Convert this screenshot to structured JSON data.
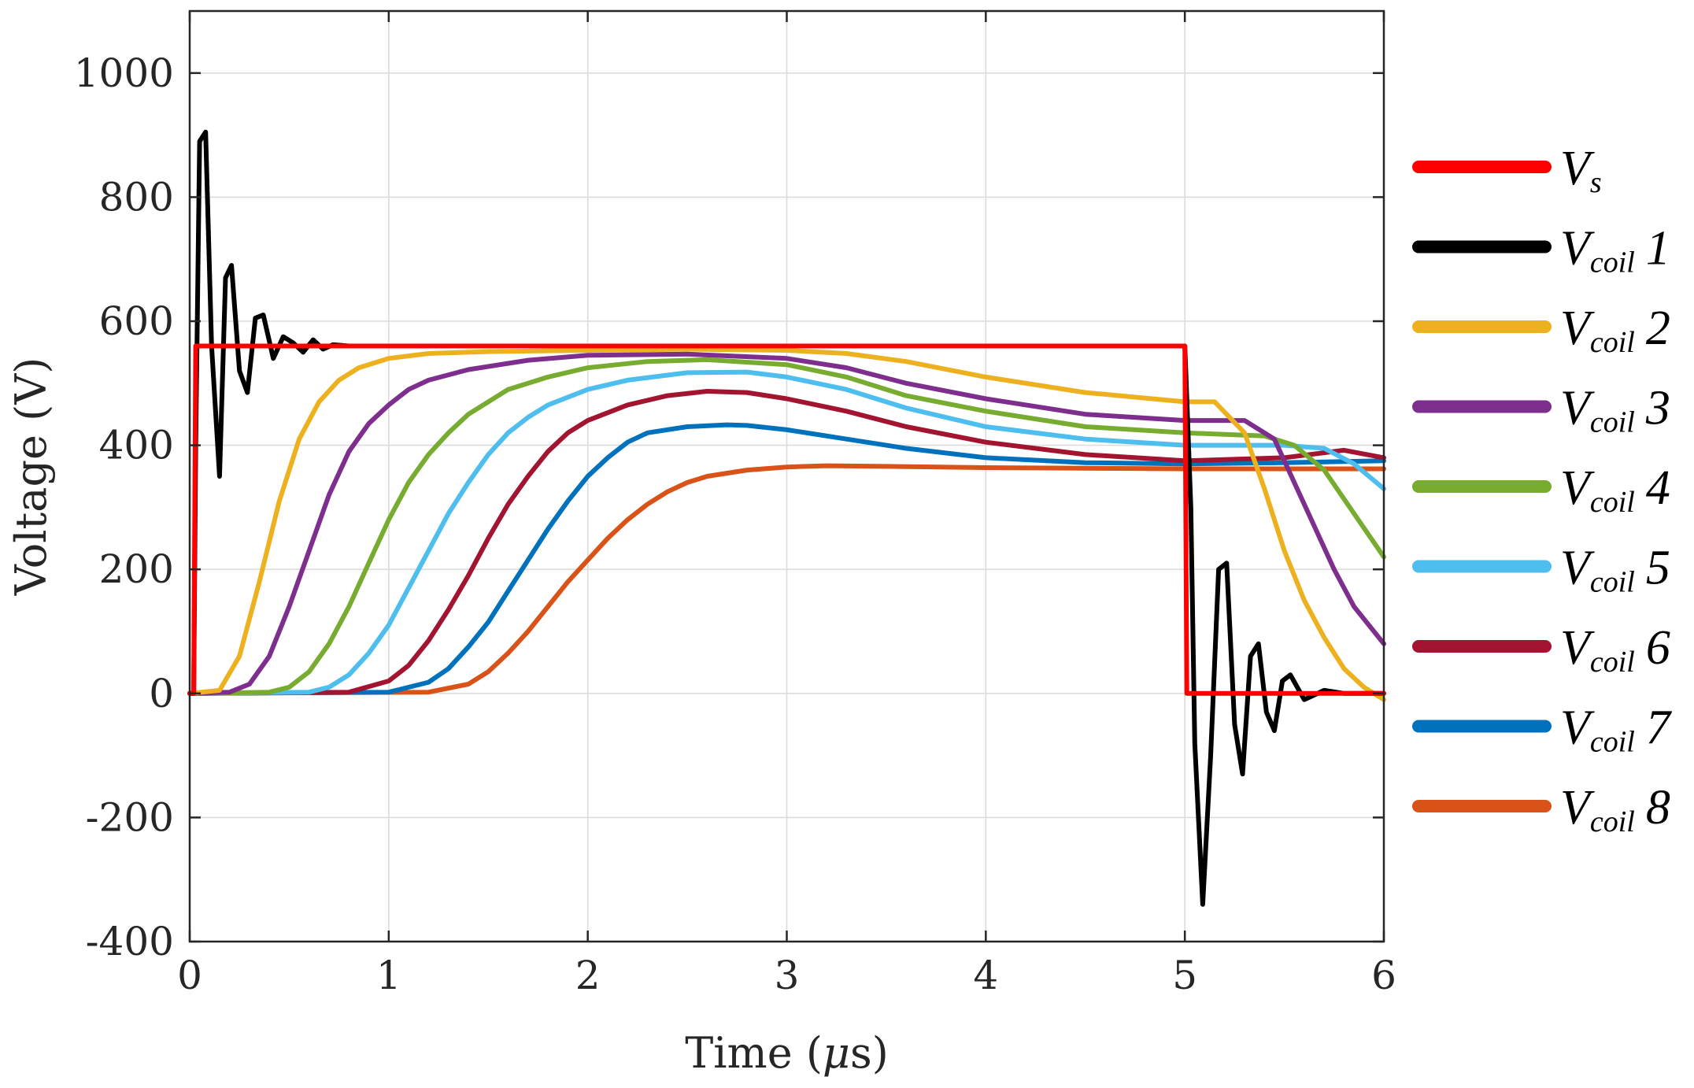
{
  "chart_data": {
    "type": "line",
    "title": "",
    "xlabel_prefix": "Time (",
    "xlabel_symbol": "μ",
    "xlabel_suffix": "s)",
    "ylabel": "Voltage (V)",
    "xlim": [
      0,
      6
    ],
    "ylim": [
      -400,
      1100
    ],
    "xticks": [
      0,
      1,
      2,
      3,
      4,
      5,
      6
    ],
    "xtick_labels": [
      "0",
      "1",
      "2",
      "3",
      "4",
      "5",
      "6"
    ],
    "yticks": [
      -400,
      -200,
      0,
      200,
      400,
      600,
      800,
      1000
    ],
    "ytick_labels": [
      "-400",
      "-200",
      "0",
      "200",
      "400",
      "600",
      "800",
      "1000"
    ],
    "grid": true,
    "legend_position": "outside-right",
    "series": [
      {
        "name": "Vs",
        "label_main": "V",
        "label_sub": "s",
        "label_num": "",
        "color": "#ff0000",
        "x": [
          0,
          0.02,
          0.03,
          5.0,
          5.01,
          6.0
        ],
        "y": [
          0,
          0,
          560,
          560,
          0,
          0
        ]
      },
      {
        "name": "Vcoil 1",
        "label_main": "V",
        "label_sub": "coil",
        "label_num": "1",
        "color": "#000000",
        "x": [
          0,
          0.02,
          0.03,
          0.05,
          0.08,
          0.11,
          0.15,
          0.18,
          0.21,
          0.25,
          0.29,
          0.33,
          0.37,
          0.42,
          0.47,
          0.52,
          0.57,
          0.62,
          0.67,
          0.72,
          0.8,
          1.0,
          5.0,
          5.03,
          5.05,
          5.09,
          5.13,
          5.17,
          5.21,
          5.25,
          5.29,
          5.33,
          5.37,
          5.41,
          5.45,
          5.49,
          5.53,
          5.6,
          5.7,
          5.8,
          6.0
        ],
        "y": [
          0,
          0,
          400,
          890,
          905,
          560,
          350,
          670,
          690,
          520,
          485,
          605,
          610,
          540,
          575,
          565,
          550,
          570,
          555,
          562,
          560,
          560,
          560,
          300,
          -80,
          -340,
          -100,
          200,
          210,
          -50,
          -130,
          60,
          80,
          -30,
          -60,
          20,
          30,
          -10,
          5,
          0,
          0
        ]
      },
      {
        "name": "Vcoil 2",
        "label_main": "V",
        "label_sub": "coil",
        "label_num": "2",
        "color": "#EDB120",
        "x": [
          0,
          0.15,
          0.25,
          0.35,
          0.45,
          0.55,
          0.65,
          0.75,
          0.85,
          1.0,
          1.2,
          1.5,
          2.0,
          2.5,
          3.0,
          3.3,
          3.6,
          4.0,
          4.5,
          5.0,
          5.15,
          5.3,
          5.4,
          5.5,
          5.6,
          5.7,
          5.8,
          5.9,
          6.0
        ],
        "y": [
          0,
          5,
          60,
          180,
          310,
          410,
          470,
          505,
          525,
          540,
          548,
          551,
          553,
          555,
          553,
          548,
          535,
          510,
          485,
          470,
          470,
          420,
          330,
          230,
          150,
          90,
          40,
          10,
          -10
        ]
      },
      {
        "name": "Vcoil 3",
        "label_main": "V",
        "label_sub": "coil",
        "label_num": "3",
        "color": "#7E2F8E",
        "x": [
          0,
          0.2,
          0.3,
          0.4,
          0.5,
          0.6,
          0.7,
          0.8,
          0.9,
          1.0,
          1.1,
          1.2,
          1.4,
          1.7,
          2.0,
          2.5,
          3.0,
          3.3,
          3.6,
          4.0,
          4.5,
          5.0,
          5.3,
          5.45,
          5.55,
          5.65,
          5.75,
          5.85,
          6.0
        ],
        "y": [
          0,
          2,
          15,
          60,
          140,
          230,
          320,
          390,
          435,
          465,
          490,
          505,
          522,
          537,
          545,
          547,
          540,
          525,
          500,
          475,
          450,
          440,
          440,
          410,
          340,
          270,
          200,
          140,
          80
        ]
      },
      {
        "name": "Vcoil 4",
        "label_main": "V",
        "label_sub": "coil",
        "label_num": "4",
        "color": "#77AC30",
        "x": [
          0,
          0.4,
          0.5,
          0.6,
          0.7,
          0.8,
          0.9,
          1.0,
          1.1,
          1.2,
          1.3,
          1.4,
          1.5,
          1.6,
          1.8,
          2.0,
          2.3,
          2.6,
          3.0,
          3.3,
          3.6,
          4.0,
          4.5,
          5.0,
          5.4,
          5.55,
          5.7,
          5.85,
          6.0
        ],
        "y": [
          0,
          2,
          10,
          35,
          80,
          140,
          210,
          280,
          340,
          385,
          420,
          450,
          470,
          490,
          510,
          525,
          535,
          538,
          530,
          510,
          480,
          455,
          430,
          420,
          415,
          400,
          360,
          290,
          220
        ]
      },
      {
        "name": "Vcoil 5",
        "label_main": "V",
        "label_sub": "coil",
        "label_num": "5",
        "color": "#4DBEEE",
        "x": [
          0,
          0.6,
          0.7,
          0.8,
          0.9,
          1.0,
          1.1,
          1.2,
          1.3,
          1.4,
          1.5,
          1.6,
          1.7,
          1.8,
          2.0,
          2.2,
          2.5,
          2.8,
          3.0,
          3.3,
          3.6,
          4.0,
          4.5,
          5.0,
          5.5,
          5.7,
          5.85,
          6.0
        ],
        "y": [
          0,
          2,
          10,
          30,
          65,
          110,
          170,
          230,
          290,
          340,
          385,
          420,
          445,
          465,
          490,
          505,
          517,
          518,
          510,
          490,
          460,
          430,
          410,
          400,
          400,
          395,
          370,
          330
        ]
      },
      {
        "name": "Vcoil 6",
        "label_main": "V",
        "label_sub": "coil",
        "label_num": "6",
        "color": "#A2142F",
        "x": [
          0,
          0.8,
          1.0,
          1.1,
          1.2,
          1.3,
          1.4,
          1.5,
          1.6,
          1.7,
          1.8,
          1.9,
          2.0,
          2.2,
          2.4,
          2.6,
          2.8,
          3.0,
          3.3,
          3.6,
          4.0,
          4.5,
          5.0,
          5.5,
          5.8,
          6.0
        ],
        "y": [
          0,
          2,
          20,
          45,
          85,
          135,
          190,
          250,
          305,
          350,
          390,
          420,
          440,
          465,
          480,
          487,
          485,
          475,
          455,
          430,
          405,
          385,
          375,
          380,
          392,
          380
        ]
      },
      {
        "name": "Vcoil 7",
        "label_main": "V",
        "label_sub": "coil",
        "label_num": "7",
        "color": "#0072BD",
        "x": [
          0,
          1.0,
          1.2,
          1.3,
          1.4,
          1.5,
          1.6,
          1.7,
          1.8,
          1.9,
          2.0,
          2.1,
          2.2,
          2.3,
          2.5,
          2.7,
          2.8,
          3.0,
          3.3,
          3.6,
          4.0,
          4.5,
          5.0,
          5.5,
          6.0
        ],
        "y": [
          0,
          2,
          18,
          40,
          75,
          115,
          165,
          215,
          265,
          310,
          350,
          380,
          405,
          420,
          430,
          433,
          432,
          425,
          410,
          395,
          380,
          372,
          370,
          372,
          375
        ]
      },
      {
        "name": "Vcoil 8",
        "label_main": "V",
        "label_sub": "coil",
        "label_num": "8",
        "color": "#D95319",
        "x": [
          0,
          1.2,
          1.4,
          1.5,
          1.6,
          1.7,
          1.8,
          1.9,
          2.0,
          2.1,
          2.2,
          2.3,
          2.4,
          2.5,
          2.6,
          2.8,
          3.0,
          3.2,
          3.5,
          4.0,
          4.5,
          5.0,
          5.5,
          6.0
        ],
        "y": [
          0,
          2,
          15,
          35,
          65,
          100,
          140,
          180,
          215,
          250,
          280,
          305,
          325,
          340,
          350,
          360,
          365,
          367,
          366,
          364,
          363,
          362,
          362,
          362
        ]
      }
    ]
  }
}
